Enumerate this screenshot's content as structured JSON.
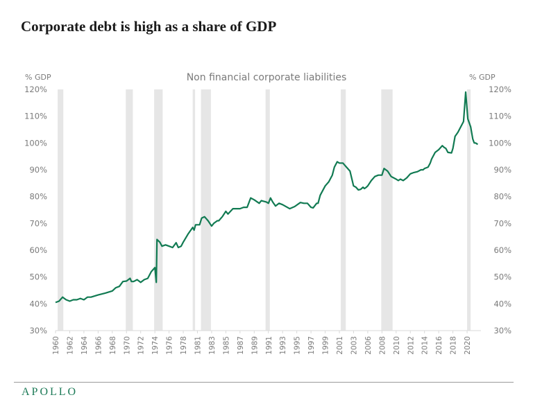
{
  "header": {
    "title": "Corporate debt is high as a share of  GDP"
  },
  "footer": {
    "logo": "APOLLO"
  },
  "colors": {
    "line": "#117a52",
    "recession": "#e6e6e6",
    "text": "#7a7a7a",
    "axis": "#d9d9d9"
  },
  "chart_data": {
    "type": "line",
    "title": "Non financial corporate liabilities",
    "ylabel_left": "% GDP",
    "ylabel_right": "% GDP",
    "ylim": [
      30,
      120
    ],
    "yticks": [
      "30%",
      "40%",
      "50%",
      "60%",
      "70%",
      "80%",
      "90%",
      "100%",
      "110%",
      "120%"
    ],
    "xtick_labels": [
      "1960",
      "1962",
      "1964",
      "1966",
      "1968",
      "1970",
      "1972",
      "1974",
      "1976",
      "1978",
      "1981",
      "1983",
      "1985",
      "1987",
      "1989",
      "1991",
      "1993",
      "1995",
      "1997",
      "1999",
      "2001",
      "2003",
      "2006",
      "2008",
      "2010",
      "2012",
      "2014",
      "2016",
      "2018",
      "2020"
    ],
    "grid": false,
    "recessions": [
      [
        1960.3,
        1961.1
      ],
      [
        1969.9,
        1970.9
      ],
      [
        1973.9,
        1975.1
      ],
      [
        1980.0,
        1980.5
      ],
      [
        1981.5,
        1982.9
      ],
      [
        1990.6,
        1991.2
      ],
      [
        2001.2,
        2001.9
      ],
      [
        2007.9,
        2009.5
      ],
      [
        2020.0,
        2020.5
      ]
    ],
    "series": [
      {
        "x": [
          1960,
          1960.5,
          1961,
          1961.5,
          1962,
          1962.5,
          1963,
          1963.5,
          1964,
          1964.5,
          1965,
          1966,
          1967,
          1968,
          1968.5,
          1969,
          1969.5,
          1970,
          1970.5,
          1970.7,
          1971,
          1971.5,
          1972,
          1972.5,
          1973,
          1973.5,
          1974,
          1974.2,
          1974.3,
          1974.7,
          1975,
          1975.5,
          1976,
          1976.5,
          1977,
          1977.3,
          1977.7,
          1978,
          1979,
          1980,
          1980.3,
          1980.6,
          1981.3,
          1981.6,
          1982,
          1982.5,
          1983,
          1983.3,
          1983.8,
          1984,
          1984.5,
          1985,
          1985.3,
          1986,
          1987,
          1987.5,
          1988,
          1988.5,
          1989,
          1989.7,
          1990,
          1990.7,
          1991,
          1991.3,
          1991.6,
          1992,
          1992.5,
          1993,
          1994,
          1994.7,
          1995.5,
          1996,
          1996.5,
          1997,
          1997.3,
          1997.8,
          1998,
          1998.3,
          1999,
          1999.5,
          2000,
          2000.3,
          2000.7,
          2001,
          2001.5,
          2002,
          2002.5,
          2003,
          2003.5,
          2004,
          2004.5,
          2005,
          2005.3,
          2005.7,
          2006,
          2006.5,
          2007,
          2007.5,
          2008,
          2008.3,
          2008.8,
          2009.3,
          2010,
          2010.3,
          2010.6,
          2011,
          2011.5,
          2012,
          2012.5,
          2013,
          2013.5,
          2013.8,
          2014,
          2014.5,
          2014.8,
          2015,
          2015.5,
          2016,
          2016.5,
          2016.8,
          2017,
          2017.3,
          2017.8,
          2018,
          2018.3,
          2018.7,
          2019,
          2019.5,
          2019.8,
          2020.1,
          2020.5,
          2020.8,
          2021,
          2021.2,
          2021.5
        ],
        "y": [
          40.5,
          41,
          42.5,
          41.5,
          41,
          41.5,
          41.5,
          42,
          41.5,
          42.5,
          42.5,
          43.3,
          44,
          44.8,
          46,
          46.5,
          48.3,
          48.5,
          49.5,
          48.3,
          48.3,
          49,
          48,
          49,
          49.5,
          52,
          53.5,
          48,
          64,
          63,
          61.5,
          62,
          61.5,
          61,
          62.8,
          61,
          61.5,
          63,
          66,
          68.5,
          67.5,
          69.5,
          69.5,
          72,
          72.5,
          71,
          69,
          70,
          71,
          71,
          72.5,
          74.5,
          73.5,
          75.5,
          75.5,
          76,
          76,
          79.5,
          78.8,
          77.5,
          78.5,
          78,
          77.5,
          79.5,
          78,
          76.5,
          77.5,
          77,
          75.5,
          76.3,
          77.8,
          77.5,
          77.5,
          76,
          75.8,
          77.5,
          77.5,
          80.5,
          84,
          85.5,
          88,
          91,
          93,
          92.5,
          92.5,
          91,
          89.5,
          84,
          83.5,
          82.5,
          82.7,
          83.5,
          83,
          83.5,
          84,
          86,
          87.5,
          88,
          88,
          90.5,
          89.5,
          87.5,
          86.5,
          86,
          86.5,
          86,
          87,
          88.5,
          89,
          89.3,
          90,
          90,
          90.5,
          91,
          92.5,
          94,
          96.5,
          97.5,
          99,
          98.3,
          98,
          96.5,
          96.3,
          98,
          102.5,
          104,
          105.5,
          108,
          119,
          109,
          106,
          101.5,
          100,
          100,
          99.5
        ]
      }
    ]
  }
}
